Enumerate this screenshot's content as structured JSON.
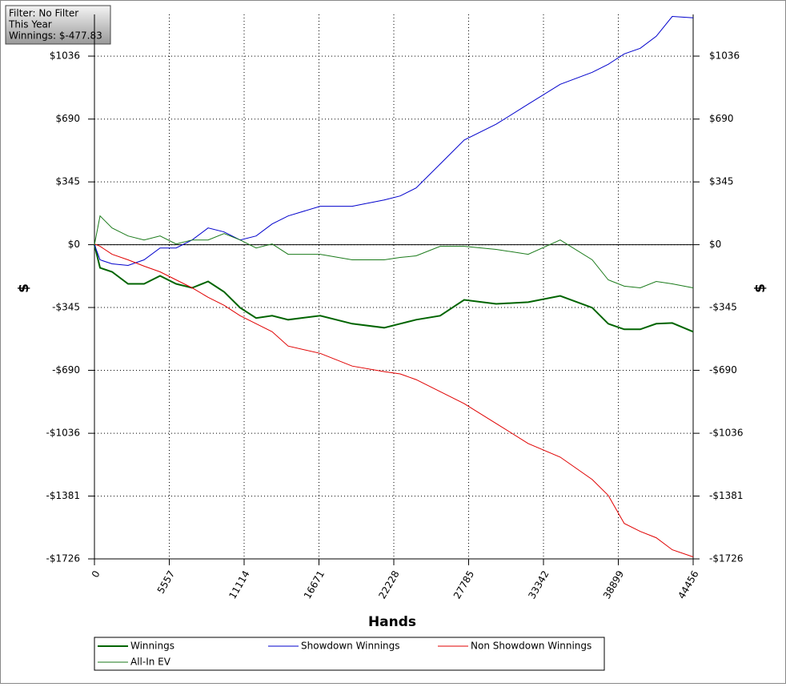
{
  "chart_data": {
    "type": "line",
    "info_box": [
      "Filter: No Filter",
      "This Year",
      "Winnings: $-477.83"
    ],
    "x_label": "Hands",
    "y_label": "$",
    "x": [
      0,
      416,
      1307,
      2496,
      3684,
      4873,
      6061,
      7250,
      8438,
      9627,
      10815,
      12004,
      13192,
      14381,
      16758,
      19135,
      21512,
      22701,
      23889,
      25672,
      27455,
      29832,
      32209,
      34586,
      36964,
      38152,
      39341,
      40529,
      41718,
      42907,
      44456
    ],
    "series": [
      {
        "name": "Winnings",
        "color": "#006400",
        "line_width": 2,
        "values": [
          0,
          -127,
          -149,
          -215,
          -215,
          -171,
          -215,
          -237,
          -202,
          -259,
          -346,
          -403,
          -390,
          -412,
          -390,
          -434,
          -456,
          -434,
          -412,
          -390,
          -303,
          -325,
          -316,
          -281,
          -346,
          -434,
          -465,
          -465,
          -434,
          -430,
          -478
        ]
      },
      {
        "name": "Showdown Winnings",
        "color": "#0000cc",
        "line_width": 1,
        "values": [
          0,
          -83,
          -105,
          -114,
          -83,
          -18,
          -18,
          26,
          92,
          70,
          26,
          48,
          114,
          158,
          211,
          211,
          246,
          268,
          312,
          443,
          575,
          662,
          772,
          881,
          947,
          991,
          1048,
          1079,
          1145,
          1254,
          1246
        ]
      },
      {
        "name": "Non Showdown Winnings",
        "color": "#e00000",
        "line_width": 1,
        "values": [
          4,
          -9,
          -53,
          -83,
          -118,
          -149,
          -193,
          -237,
          -289,
          -333,
          -390,
          -434,
          -478,
          -557,
          -597,
          -667,
          -697,
          -710,
          -741,
          -807,
          -873,
          -982,
          -1092,
          -1167,
          -1290,
          -1377,
          -1531,
          -1575,
          -1610,
          -1676,
          -1715
        ]
      },
      {
        "name": "All-In EV",
        "color": "#1a7a1a",
        "line_width": 1,
        "values": [
          0,
          158,
          92,
          48,
          26,
          48,
          4,
          26,
          26,
          61,
          26,
          -18,
          4,
          -53,
          -53,
          -83,
          -83,
          -70,
          -61,
          -9,
          -9,
          -26,
          -53,
          26,
          -83,
          -193,
          -228,
          -237,
          -202,
          -215,
          -237
        ]
      }
    ],
    "xlim": [
      0,
      44456
    ],
    "xticks": [
      0,
      5557,
      11114,
      16671,
      22228,
      27785,
      33342,
      38899,
      44456
    ],
    "ylim": [
      -1726,
      1265
    ],
    "yticks": [
      {
        "value": -1726,
        "label": "-$1726"
      },
      {
        "value": -1381,
        "label": "-$1381"
      },
      {
        "value": -1036,
        "label": "-$1036"
      },
      {
        "value": -690,
        "label": "-$690"
      },
      {
        "value": -345,
        "label": "-$345"
      },
      {
        "value": 0,
        "label": "$0"
      },
      {
        "value": 345,
        "label": "$345"
      },
      {
        "value": 690,
        "label": "$690"
      },
      {
        "value": 1036,
        "label": "$1036"
      }
    ],
    "grid": true,
    "zero_line": true,
    "legend": "bottom"
  }
}
